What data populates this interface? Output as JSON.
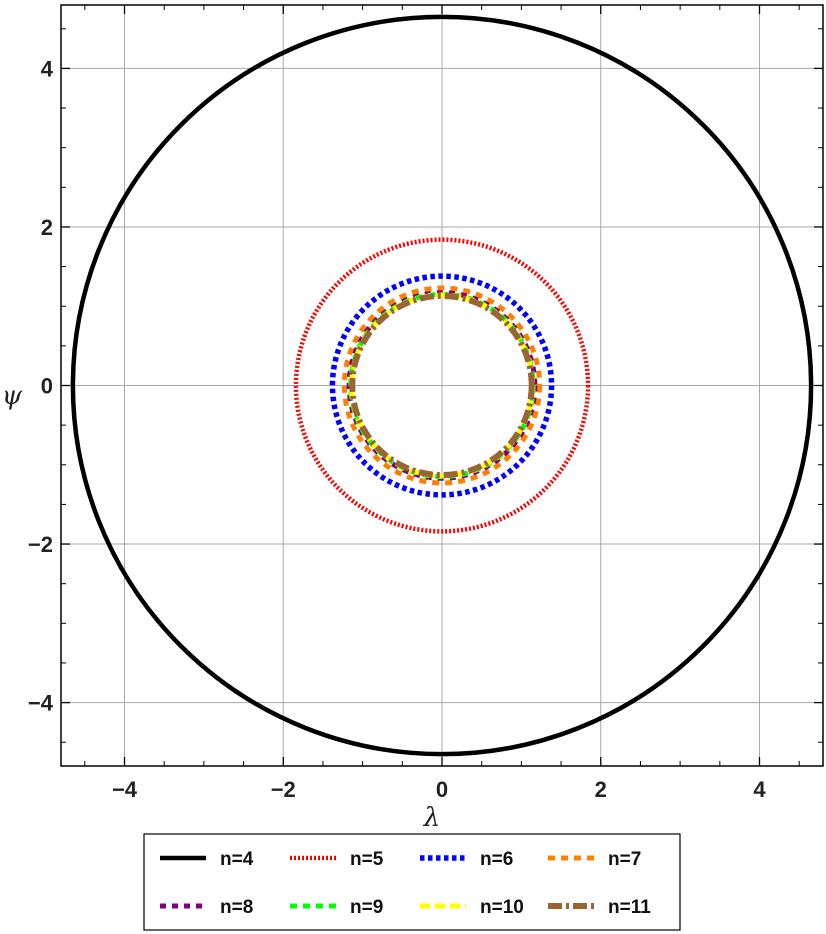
{
  "chart_data": {
    "type": "line",
    "xlabel": "λ",
    "ylabel": "ψ",
    "xlim": [
      -4.8,
      4.8
    ],
    "ylim": [
      -4.8,
      4.8
    ],
    "grid": true,
    "xticks": [
      -4,
      -2,
      0,
      2,
      4
    ],
    "yticks": [
      -4,
      -2,
      0,
      2,
      4
    ],
    "xtick_labels": [
      "−4",
      "−2",
      "0",
      "2",
      "4"
    ],
    "ytick_labels": [
      "−4",
      "−2",
      "0",
      "2",
      "4"
    ],
    "legend_position": "bottom",
    "series": [
      {
        "name": "n=4",
        "shape": "circle",
        "center": [
          0,
          0
        ],
        "radius": 4.65,
        "color": "#000000",
        "style": "solid"
      },
      {
        "name": "n=5",
        "shape": "circle",
        "center": [
          0,
          0
        ],
        "radius": 1.84,
        "color": "#ff0000",
        "style": "dotted"
      },
      {
        "name": "n=6",
        "shape": "circle",
        "center": [
          0,
          0
        ],
        "radius": 1.38,
        "color": "#0000ff",
        "style": "dotted"
      },
      {
        "name": "n=7",
        "shape": "circle",
        "center": [
          0,
          0
        ],
        "radius": 1.23,
        "color": "#ff8000",
        "style": "dashed"
      },
      {
        "name": "n=8",
        "shape": "circle",
        "center": [
          0,
          0
        ],
        "radius": 1.17,
        "color": "#800080",
        "style": "dashed"
      },
      {
        "name": "n=9",
        "shape": "circle",
        "center": [
          0,
          0
        ],
        "radius": 1.15,
        "color": "#00ff00",
        "style": "dashed"
      },
      {
        "name": "n=10",
        "shape": "circle",
        "center": [
          0,
          0
        ],
        "radius": 1.14,
        "color": "#ffff00",
        "style": "dashed"
      },
      {
        "name": "n=11",
        "shape": "circle",
        "center": [
          0,
          0
        ],
        "radius": 1.13,
        "color": "#996633",
        "style": "dot-dashed"
      }
    ]
  }
}
